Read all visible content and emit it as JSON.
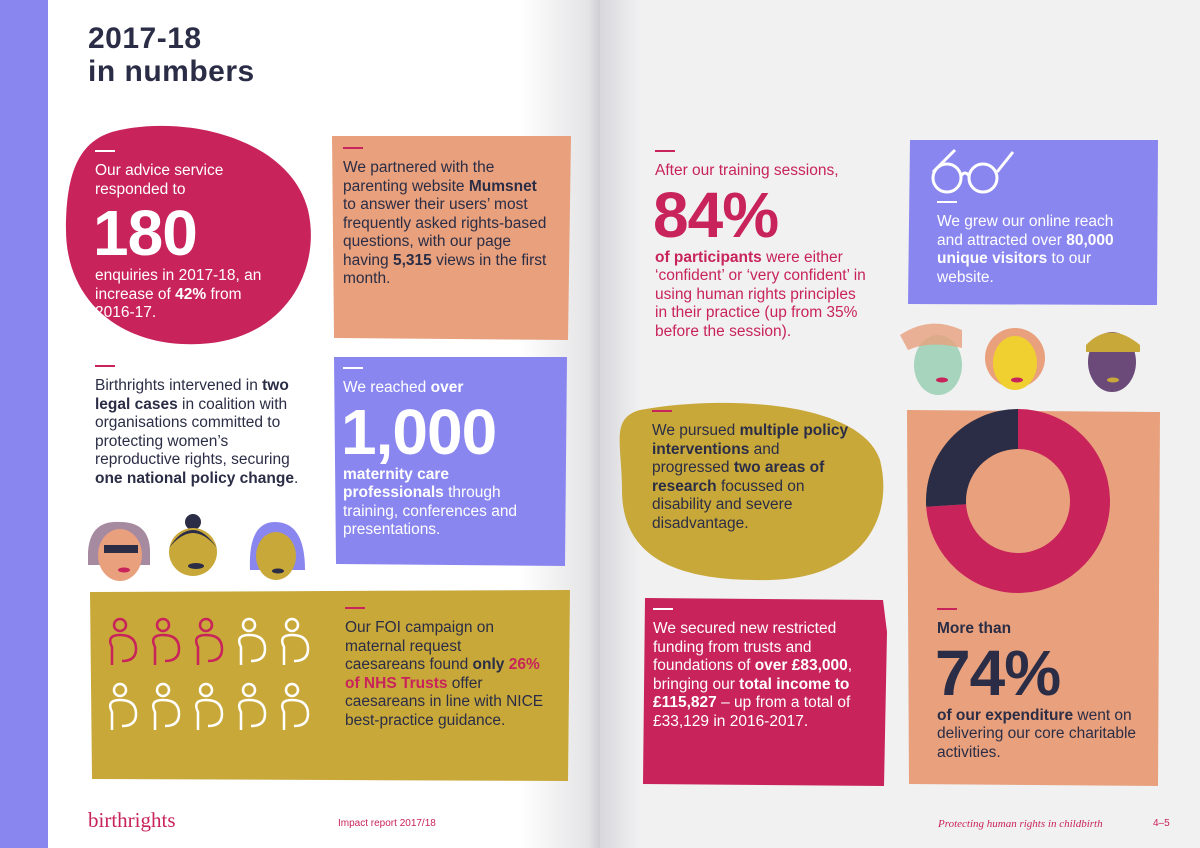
{
  "header": {
    "title_line1": "2017-18",
    "title_line2": "in numbers"
  },
  "advice": {
    "intro": [
      "Our advice service responded to"
    ],
    "figure": "180",
    "body": [
      "enquiries in 2017-18, an increase of ",
      {
        "b": "42%"
      },
      " from 2016-17."
    ]
  },
  "mumsnet": {
    "body": [
      "We partnered with the parenting website ",
      {
        "b": "Mumsnet"
      },
      " to answer their users’ most frequently asked rights-based questions, with our page having ",
      {
        "b": "5,315"
      },
      " views in the first month."
    ]
  },
  "legal": {
    "body": [
      "Birthrights intervened in ",
      {
        "b": "two legal cases"
      },
      " in coalition with organisations committed to protecting women’s reproductive rights, securing ",
      {
        "b": "one national policy change"
      },
      "."
    ]
  },
  "reach": {
    "intro": [
      "We reached ",
      {
        "b": "over"
      }
    ],
    "figure": "1,000",
    "body": [
      {
        "b": "maternity care professionals"
      },
      " through training, conferences and presentations."
    ]
  },
  "foi": {
    "body": [
      "Our FOI campaign on maternal request caesareans found ",
      {
        "b": "only"
      },
      {
        "r": " 26% of NHS Trusts"
      },
      " offer caesareans in line with NICE best-practice guidance."
    ]
  },
  "training": {
    "intro": [
      "After our training sessions,"
    ],
    "figure": "84%",
    "body": [
      {
        "b": "of participants"
      },
      " were either ‘confident’ or ‘very confident’ in using human rights principles in their practice (up from 35% before the session)."
    ]
  },
  "online": {
    "body": [
      "We grew our online reach and attracted over ",
      {
        "b": "80,000 unique visitors"
      },
      " to our website."
    ]
  },
  "policy": {
    "body": [
      "We pursued ",
      {
        "b": "multiple policy interventions"
      },
      " and progressed ",
      {
        "b": "two areas of research"
      },
      " focussed on disability and severe disadvantage."
    ]
  },
  "funding": {
    "body": [
      "We secured new restricted funding from trusts and foundations of ",
      {
        "b": "over £83,000"
      },
      ", bringing our ",
      {
        "b": "total income to £115,827"
      },
      " – up from a total of £33,129 in 2016-2017."
    ]
  },
  "expenditure": {
    "intro": [
      {
        "b": "More than"
      }
    ],
    "figure": "74%",
    "body": [
      {
        "b": "of our expenditure"
      },
      " went on delivering our core charitable activities."
    ],
    "donut": {
      "values": [
        74,
        26
      ],
      "colors": [
        "#c8235a",
        "#2a2d45"
      ]
    }
  },
  "footer": {
    "logo": "birthrights",
    "report": "Impact report 2017/18",
    "tagline": "Protecting human rights in childbirth",
    "pages": "4–5"
  }
}
